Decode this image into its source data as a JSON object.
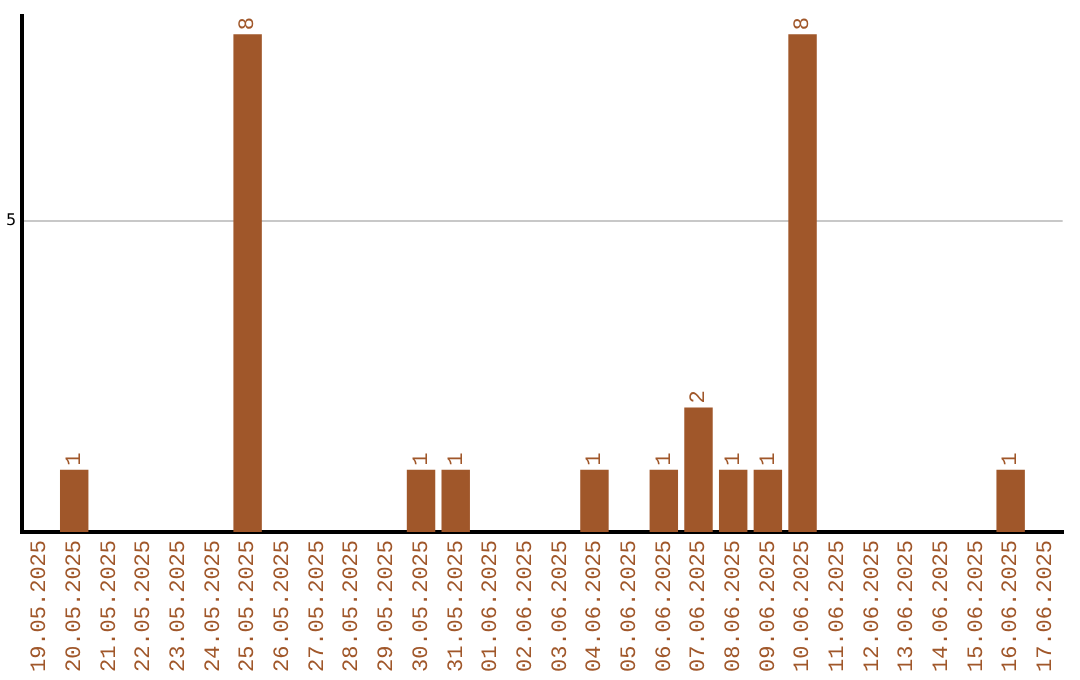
{
  "chart_data": {
    "type": "bar",
    "categories": [
      "19.05.2025",
      "20.05.2025",
      "21.05.2025",
      "22.05.2025",
      "23.05.2025",
      "24.05.2025",
      "25.05.2025",
      "26.05.2025",
      "27.05.2025",
      "28.05.2025",
      "29.05.2025",
      "30.05.2025",
      "31.05.2025",
      "01.06.2025",
      "02.06.2025",
      "03.06.2025",
      "04.06.2025",
      "05.06.2025",
      "06.06.2025",
      "07.06.2025",
      "08.06.2025",
      "09.06.2025",
      "10.06.2025",
      "11.06.2025",
      "12.06.2025",
      "13.06.2025",
      "14.06.2025",
      "15.06.2025",
      "16.06.2025",
      "17.06.2025"
    ],
    "values": [
      0,
      1,
      0,
      0,
      0,
      0,
      8,
      0,
      0,
      0,
      0,
      1,
      1,
      0,
      0,
      0,
      1,
      0,
      1,
      2,
      1,
      1,
      8,
      0,
      0,
      0,
      0,
      0,
      1,
      0
    ],
    "value_labels": [
      null,
      "1",
      null,
      null,
      null,
      null,
      "8",
      null,
      null,
      null,
      null,
      "1",
      "1",
      null,
      null,
      null,
      "1",
      null,
      "1",
      "2",
      "1",
      "1",
      "8",
      null,
      null,
      null,
      null,
      null,
      "1",
      null
    ],
    "color": "#a0572a",
    "ylim": [
      0,
      8.3
    ],
    "yticks": [
      5
    ],
    "grid": "y",
    "legend": false
  }
}
